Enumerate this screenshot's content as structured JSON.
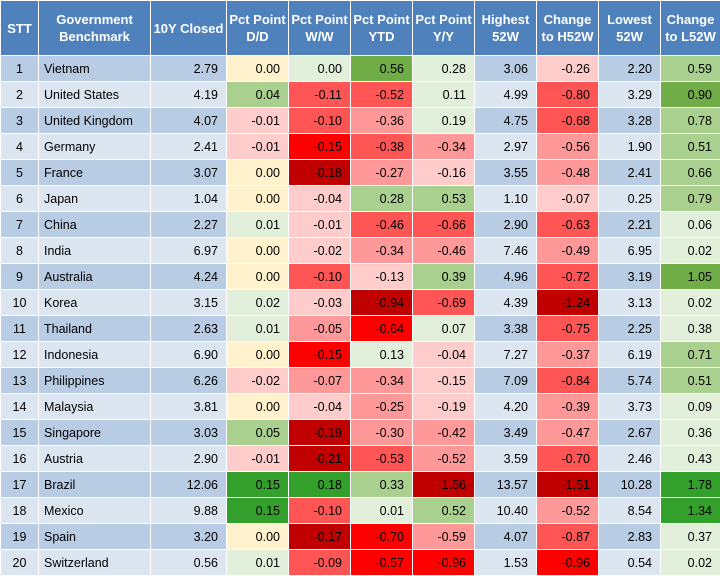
{
  "chart_data": {
    "type": "table",
    "columns": [
      "STT",
      "Government Benchmark",
      "10Y Closed",
      "Pct Point D/D",
      "Pct Point W/W",
      "Pct Point YTD",
      "Pct Point Y/Y",
      "Highest 52W",
      "Change to H52W",
      "Lowest 52W",
      "Change to L52W"
    ],
    "rows": [
      [
        "1",
        "Vietnam",
        "2.79",
        "0.00",
        "0.00",
        "0.56",
        "0.28",
        "3.06",
        "-0.26",
        "2.20",
        "0.59"
      ],
      [
        "2",
        "United States",
        "4.19",
        "0.04",
        "-0.11",
        "-0.52",
        "0.11",
        "4.99",
        "-0.80",
        "3.29",
        "0.90"
      ],
      [
        "3",
        "United Kingdom",
        "4.07",
        "-0.01",
        "-0.10",
        "-0.36",
        "0.19",
        "4.75",
        "-0.68",
        "3.28",
        "0.78"
      ],
      [
        "4",
        "Germany",
        "2.41",
        "-0.01",
        "-0.15",
        "-0.38",
        "-0.34",
        "2.97",
        "-0.56",
        "1.90",
        "0.51"
      ],
      [
        "5",
        "France",
        "3.07",
        "0.00",
        "-0.18",
        "-0.27",
        "-0.16",
        "3.55",
        "-0.48",
        "2.41",
        "0.66"
      ],
      [
        "6",
        "Japan",
        "1.04",
        "0.00",
        "-0.04",
        "0.28",
        "0.53",
        "1.10",
        "-0.07",
        "0.25",
        "0.79"
      ],
      [
        "7",
        "China",
        "2.27",
        "0.01",
        "-0.01",
        "-0.46",
        "-0.66",
        "2.90",
        "-0.63",
        "2.21",
        "0.06"
      ],
      [
        "8",
        "India",
        "6.97",
        "0.00",
        "-0.02",
        "-0.34",
        "-0.46",
        "7.46",
        "-0.49",
        "6.95",
        "0.02"
      ],
      [
        "9",
        "Australia",
        "4.24",
        "0.00",
        "-0.10",
        "-0.13",
        "0.39",
        "4.96",
        "-0.72",
        "3.19",
        "1.05"
      ],
      [
        "10",
        "Korea",
        "3.15",
        "0.02",
        "-0.03",
        "-0.94",
        "-0.69",
        "4.39",
        "-1.24",
        "3.13",
        "0.02"
      ],
      [
        "11",
        "Thailand",
        "2.63",
        "0.01",
        "-0.05",
        "-0.64",
        "0.07",
        "3.38",
        "-0.75",
        "2.25",
        "0.38"
      ],
      [
        "12",
        "Indonesia",
        "6.90",
        "0.00",
        "-0.15",
        "0.13",
        "-0.04",
        "7.27",
        "-0.37",
        "6.19",
        "0.71"
      ],
      [
        "13",
        "Philippines",
        "6.26",
        "-0.02",
        "-0.07",
        "-0.34",
        "-0.15",
        "7.09",
        "-0.84",
        "5.74",
        "0.51"
      ],
      [
        "14",
        "Malaysia",
        "3.81",
        "0.00",
        "-0.04",
        "-0.25",
        "-0.19",
        "4.20",
        "-0.39",
        "3.73",
        "0.09"
      ],
      [
        "15",
        "Singapore",
        "3.03",
        "0.05",
        "-0.19",
        "-0.30",
        "-0.42",
        "3.49",
        "-0.47",
        "2.67",
        "0.36"
      ],
      [
        "16",
        "Austria",
        "2.90",
        "-0.01",
        "-0.21",
        "-0.53",
        "-0.52",
        "3.59",
        "-0.70",
        "2.46",
        "0.43"
      ],
      [
        "17",
        "Brazil",
        "12.06",
        "0.15",
        "0.18",
        "0.33",
        "-1.56",
        "13.57",
        "-1.51",
        "10.28",
        "1.78"
      ],
      [
        "18",
        "Mexico",
        "9.88",
        "0.15",
        "-0.10",
        "0.01",
        "0.52",
        "10.40",
        "-0.52",
        "8.54",
        "1.34"
      ],
      [
        "19",
        "Spain",
        "3.20",
        "0.00",
        "-0.17",
        "-0.70",
        "-0.59",
        "4.07",
        "-0.87",
        "2.83",
        "0.37"
      ],
      [
        "20",
        "Switzerland",
        "0.56",
        "0.01",
        "-0.09",
        "-0.57",
        "-0.96",
        "1.53",
        "-0.96",
        "0.54",
        "0.02"
      ]
    ]
  },
  "colors": {
    "header_bg": "#4f81bd",
    "row_odd": "#b8cce4",
    "row_even": "#dce6f1",
    "positive_scale": [
      "#e2efda",
      "#a9d08e",
      "#70ad47",
      "#33a02c"
    ],
    "negative_scale": [
      "#ffcccc",
      "#ff9999",
      "#ff5555",
      "#ff0000",
      "#c00000"
    ],
    "neutral": "#fff2cc"
  }
}
